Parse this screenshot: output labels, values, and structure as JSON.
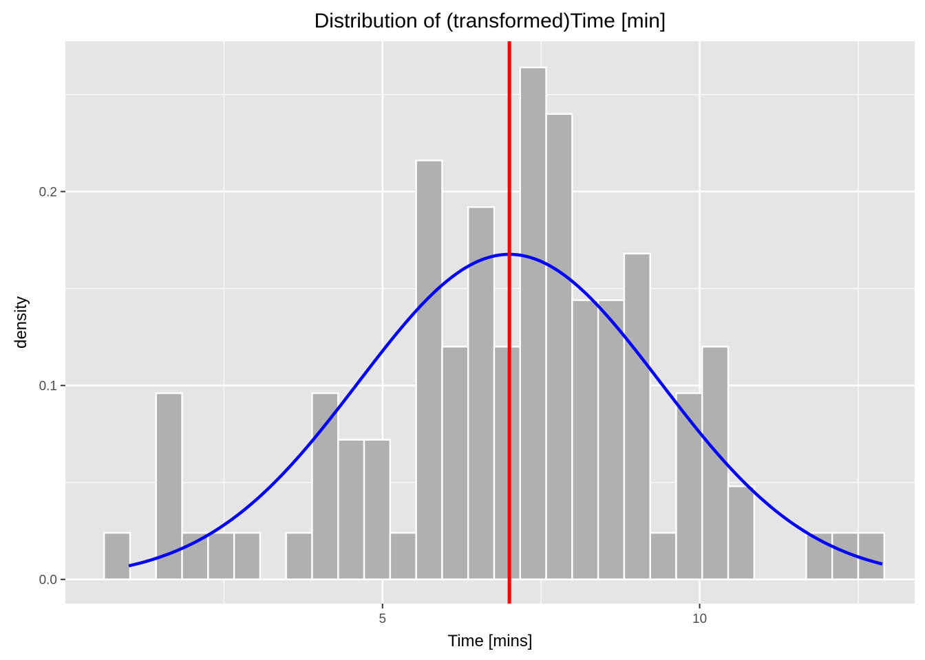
{
  "chart_data": {
    "type": "bar",
    "title": "Distribution of (transformed)Time [min]",
    "xlabel": "Time [mins]",
    "ylabel": "density",
    "xlim": [
      0.0,
      13.39
    ],
    "ylim": [
      -0.0125,
      0.2775
    ],
    "x_ticks": [
      5,
      10
    ],
    "x_tick_labels": [
      "5",
      "10"
    ],
    "x_minor_ticks": [
      2.5,
      7.5,
      12.5
    ],
    "y_ticks": [
      0.0,
      0.1,
      0.2
    ],
    "y_tick_labels": [
      "0.0",
      "0.1",
      "0.2"
    ],
    "y_minor_ticks": [
      0.05,
      0.15,
      0.25
    ],
    "grid": true,
    "bin_width": 0.41,
    "bins": [
      {
        "x_start": 0.61,
        "density": 0.024
      },
      {
        "x_start": 1.43,
        "density": 0.096
      },
      {
        "x_start": 1.84,
        "density": 0.024
      },
      {
        "x_start": 2.25,
        "density": 0.024
      },
      {
        "x_start": 2.66,
        "density": 0.024
      },
      {
        "x_start": 3.48,
        "density": 0.024
      },
      {
        "x_start": 3.89,
        "density": 0.096
      },
      {
        "x_start": 4.3,
        "density": 0.072
      },
      {
        "x_start": 4.71,
        "density": 0.072
      },
      {
        "x_start": 5.12,
        "density": 0.024
      },
      {
        "x_start": 5.53,
        "density": 0.216
      },
      {
        "x_start": 5.94,
        "density": 0.12
      },
      {
        "x_start": 6.35,
        "density": 0.192
      },
      {
        "x_start": 6.76,
        "density": 0.12
      },
      {
        "x_start": 7.17,
        "density": 0.264
      },
      {
        "x_start": 7.58,
        "density": 0.24
      },
      {
        "x_start": 7.99,
        "density": 0.144
      },
      {
        "x_start": 8.4,
        "density": 0.144
      },
      {
        "x_start": 8.81,
        "density": 0.168
      },
      {
        "x_start": 9.22,
        "density": 0.024
      },
      {
        "x_start": 9.63,
        "density": 0.096
      },
      {
        "x_start": 10.04,
        "density": 0.12
      },
      {
        "x_start": 10.45,
        "density": 0.048
      },
      {
        "x_start": 11.68,
        "density": 0.024
      },
      {
        "x_start": 12.09,
        "density": 0.024
      },
      {
        "x_start": 12.5,
        "density": 0.024
      }
    ],
    "normal_curve": {
      "mean": 7.0,
      "sd": 2.38,
      "x_range": [
        1.0,
        12.88
      ]
    },
    "mean_line": {
      "x": 7.0
    },
    "colors": {
      "bar_fill": "#b0b0b0",
      "bar_outline": "#ffffff",
      "curve": "#0000ff",
      "mean_line": "#ff0000",
      "panel": "#e5e5e5",
      "grid": "#ffffff"
    }
  }
}
